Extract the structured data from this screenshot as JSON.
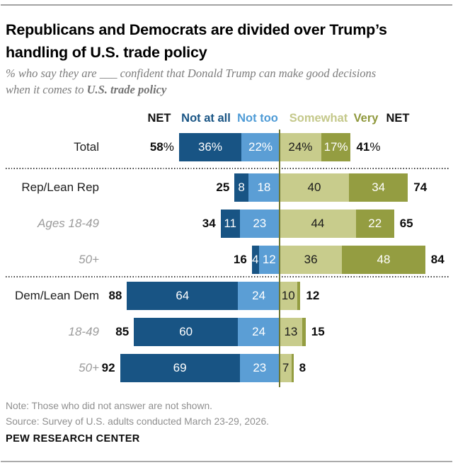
{
  "header": {
    "title_line1": "Republicans and Democrats are divided over Trump’s",
    "title_line2": "handling of U.S. trade policy",
    "subtitle_line1": "% who say they are ___ confident that Donald Trump can make good decisions",
    "subtitle_line2_prefix": "when it comes to ",
    "subtitle_bold": "U.S. trade policy"
  },
  "chart_data": {
    "type": "bar",
    "variant": "horizontal-diverging-stacked",
    "title": "Republicans and Democrats are divided over Trump’s handling of U.S. trade policy",
    "units": "%",
    "legend_position": "top",
    "columns": [
      {
        "text": "NET",
        "color": "#111111"
      },
      {
        "text": "Not at all",
        "color": "#185484"
      },
      {
        "text": "Not too",
        "color": "#4e9bd6"
      },
      {
        "text": "Somewhat",
        "color": "#c4c88a"
      },
      {
        "text": "Very",
        "color": "#8f983c"
      },
      {
        "text": "NET",
        "color": "#111111"
      }
    ],
    "segment_keys": [
      "not_at_all",
      "not_too",
      "somewhat",
      "very"
    ],
    "categories": [
      "Total",
      "Rep/Lean Rep",
      "Ages 18-49",
      "50+",
      "Dem/Lean Dem",
      "18-49",
      "50+"
    ],
    "rows": [
      {
        "label": "Total",
        "muted": false,
        "net_left": "58%",
        "net_right": "41%",
        "values": [
          36,
          22,
          24,
          17
        ],
        "labels": [
          "36%",
          "22%",
          "24%",
          "17%"
        ]
      },
      {
        "label": "Rep/Lean Rep",
        "muted": false,
        "net_left": "25",
        "net_right": "74",
        "values": [
          8,
          18,
          40,
          34
        ],
        "labels": [
          "8",
          "18",
          "40",
          "34"
        ]
      },
      {
        "label": "Ages 18-49",
        "muted": true,
        "net_left": "34",
        "net_right": "65",
        "values": [
          11,
          23,
          44,
          22
        ],
        "labels": [
          "11",
          "23",
          "44",
          "22"
        ]
      },
      {
        "label": "50+",
        "muted": true,
        "net_left": "16",
        "net_right": "84",
        "values": [
          4,
          12,
          36,
          48
        ],
        "labels": [
          "4",
          "12",
          "36",
          "48"
        ]
      },
      {
        "label": "Dem/Lean Dem",
        "muted": false,
        "net_left": "88",
        "net_right": "12",
        "values": [
          64,
          24,
          10,
          2
        ],
        "labels": [
          "64",
          "24",
          "10",
          ""
        ]
      },
      {
        "label": "18-49",
        "muted": true,
        "net_left": "85",
        "net_right": "15",
        "values": [
          60,
          24,
          13,
          2
        ],
        "labels": [
          "60",
          "24",
          "13",
          ""
        ]
      },
      {
        "label": "50+",
        "muted": true,
        "net_left": "92",
        "net_right": "8",
        "values": [
          69,
          23,
          7,
          1
        ],
        "labels": [
          "69",
          "23",
          "7",
          ""
        ]
      }
    ],
    "group_separators_after_row_index": [
      0,
      3
    ],
    "colors": {
      "not_at_all": "#185484",
      "not_too": "#5b9ed5",
      "somewhat": "#c8cc8c",
      "very": "#949d41",
      "divider_line": "#6e7630",
      "label_on_somewhat": "#1a1a1a",
      "label_on_dark": "#ffffff",
      "muted_row_label": "#9b9b9b",
      "net_text": "#0c0c0c"
    }
  },
  "footer": {
    "note": "Note: Those who did not answer are not shown.",
    "source": "Source: Survey of U.S. adults conducted March 23-29, 2026.",
    "brand": "PEW RESEARCH CENTER"
  }
}
